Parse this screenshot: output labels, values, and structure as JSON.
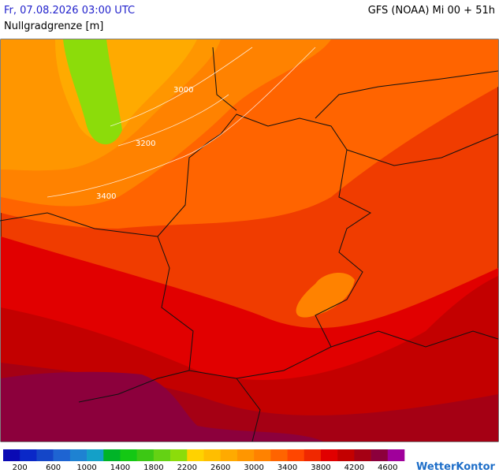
{
  "header": {
    "datetime": "Fr, 07.08.2026 03:00 UTC",
    "model": "GFS (NOAA) Mi 00 + 51h",
    "parameter": "Nullgradgrenze [m]"
  },
  "map": {
    "contour_labels": [
      "3000",
      "3200",
      "3400"
    ]
  },
  "legend": {
    "labels": [
      "200",
      "600",
      "1000",
      "1400",
      "1800",
      "2200",
      "2600",
      "3000",
      "3400",
      "3800",
      "4200",
      "4600"
    ],
    "colors": [
      "#0a0ab4",
      "#0a28c8",
      "#1446c8",
      "#1e64d2",
      "#1e82d2",
      "#14a0c8",
      "#00b428",
      "#14c814",
      "#3cc814",
      "#64d214",
      "#8cdc0a",
      "#ffd200",
      "#ffbe00",
      "#ffaa00",
      "#ff9600",
      "#ff8200",
      "#ff6400",
      "#ff4600",
      "#f02800",
      "#e10000",
      "#c30000",
      "#a50014",
      "#8c003c",
      "#a0009b"
    ]
  },
  "brand": "WetterKontor"
}
